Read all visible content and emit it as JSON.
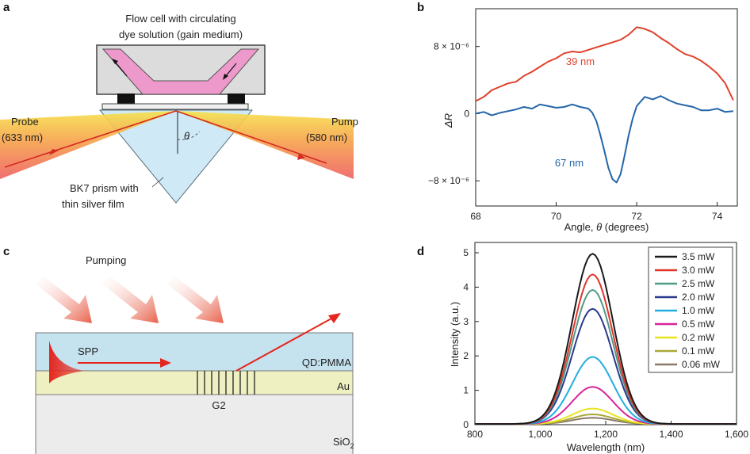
{
  "panels": {
    "a": {
      "letter": "a",
      "flow_cell_line1": "Flow cell with circulating",
      "flow_cell_line2": "dye solution (gain medium)",
      "probe_line1": "Probe",
      "probe_line2": "(633 nm)",
      "pump_line1": "Pump",
      "pump_line2": "(580 nm)",
      "theta": "θ",
      "prism_line1": "BK7 prism with",
      "prism_line2": "thin silver film"
    },
    "b": {
      "letter": "b"
    },
    "c": {
      "letter": "c",
      "pumping": "Pumping",
      "spp": "SPP",
      "qd_pmma": "QD:PMMA",
      "au": "Au",
      "g2": "G2",
      "sio2_main": "SiO",
      "sio2_sub": "2"
    },
    "d": {
      "letter": "d"
    }
  },
  "chart_data": [
    {
      "panel": "b",
      "type": "line",
      "xlabel_prefix": "Angle, ",
      "xlabel_var": "θ",
      "xlabel_suffix": " (degrees)",
      "ylabel": "ΔR",
      "xlim": [
        68,
        74.5
      ],
      "ylim": [
        -11,
        12.5
      ],
      "xticks": [
        68,
        70,
        72,
        74
      ],
      "xtick_labels": [
        "68",
        "70",
        "72",
        "74"
      ],
      "yticks": [
        8,
        0,
        -8
      ],
      "ytick_labels": [
        "8 × 10⁻⁶",
        "0",
        "−8 × 10⁻⁶"
      ],
      "series": [
        {
          "name": "39 nm",
          "label": "39 nm",
          "color": "#e0412b",
          "x": [
            68.0,
            68.2,
            68.4,
            68.6,
            68.8,
            69.0,
            69.2,
            69.4,
            69.6,
            69.8,
            70.0,
            70.2,
            70.4,
            70.6,
            70.8,
            71.0,
            71.2,
            71.4,
            71.6,
            71.8,
            72.0,
            72.2,
            72.4,
            72.6,
            72.8,
            73.0,
            73.2,
            73.4,
            73.6,
            73.8,
            74.0,
            74.2,
            74.4
          ],
          "y": [
            1.5,
            2.0,
            2.8,
            3.2,
            3.6,
            3.8,
            4.5,
            5.0,
            5.6,
            6.2,
            6.6,
            7.2,
            7.4,
            7.3,
            7.6,
            7.9,
            8.2,
            8.5,
            8.8,
            9.4,
            10.3,
            10.1,
            9.7,
            9.0,
            8.4,
            7.7,
            7.1,
            6.8,
            6.3,
            5.6,
            4.8,
            3.6,
            1.6
          ]
        },
        {
          "name": "67 nm",
          "label": "67 nm",
          "color": "#2466a8",
          "x": [
            68.0,
            68.2,
            68.4,
            68.6,
            68.8,
            69.0,
            69.2,
            69.4,
            69.6,
            69.8,
            70.0,
            70.2,
            70.4,
            70.6,
            70.8,
            70.9,
            71.0,
            71.1,
            71.2,
            71.3,
            71.4,
            71.5,
            71.6,
            71.7,
            71.8,
            71.9,
            72.0,
            72.2,
            72.4,
            72.6,
            72.8,
            73.0,
            73.2,
            73.4,
            73.6,
            73.8,
            74.0,
            74.2,
            74.4
          ],
          "y": [
            0.0,
            0.2,
            -0.2,
            0.1,
            0.3,
            0.5,
            0.8,
            0.6,
            1.1,
            0.9,
            0.7,
            0.8,
            1.1,
            0.8,
            0.6,
            0.1,
            -0.9,
            -2.6,
            -4.5,
            -6.5,
            -7.8,
            -8.2,
            -7.2,
            -5.0,
            -2.6,
            -0.6,
            0.9,
            2.0,
            1.7,
            2.1,
            1.6,
            1.2,
            1.0,
            0.8,
            0.4,
            0.4,
            0.6,
            0.2,
            0.3
          ]
        }
      ]
    },
    {
      "panel": "d",
      "type": "line",
      "xlabel": "Wavelength (nm)",
      "ylabel": "Intensity (a.u.)",
      "xlim": [
        800,
        1600
      ],
      "ylim": [
        0,
        5.3
      ],
      "xticks": [
        800,
        1000,
        1200,
        1400,
        1600
      ],
      "xtick_labels": [
        "800",
        "1,000",
        "1,200",
        "1,400",
        "1,600"
      ],
      "yticks": [
        0,
        1,
        2,
        3,
        4,
        5
      ],
      "ytick_labels": [
        "0",
        "1",
        "2",
        "3",
        "4",
        "5"
      ],
      "peak_nm": 1160,
      "series": [
        {
          "name": "3.5 mW",
          "color": "#1a1a1a",
          "peak": 4.95
        },
        {
          "name": "3.0 mW",
          "color": "#e0352b",
          "peak": 4.35
        },
        {
          "name": "2.5 mW",
          "color": "#4f9a86",
          "peak": 3.9
        },
        {
          "name": "2.0 mW",
          "color": "#2b3a8c",
          "peak": 3.35
        },
        {
          "name": "1.0 mW",
          "color": "#23aee0",
          "peak": 1.95
        },
        {
          "name": "0.5 mW",
          "color": "#d8249a",
          "peak": 1.08
        },
        {
          "name": "0.2 mW",
          "color": "#e8e422",
          "peak": 0.45
        },
        {
          "name": "0.1 mW",
          "color": "#aaa838",
          "peak": 0.28
        },
        {
          "name": "0.06 mW",
          "color": "#8a7a6a",
          "peak": 0.18
        }
      ]
    }
  ]
}
